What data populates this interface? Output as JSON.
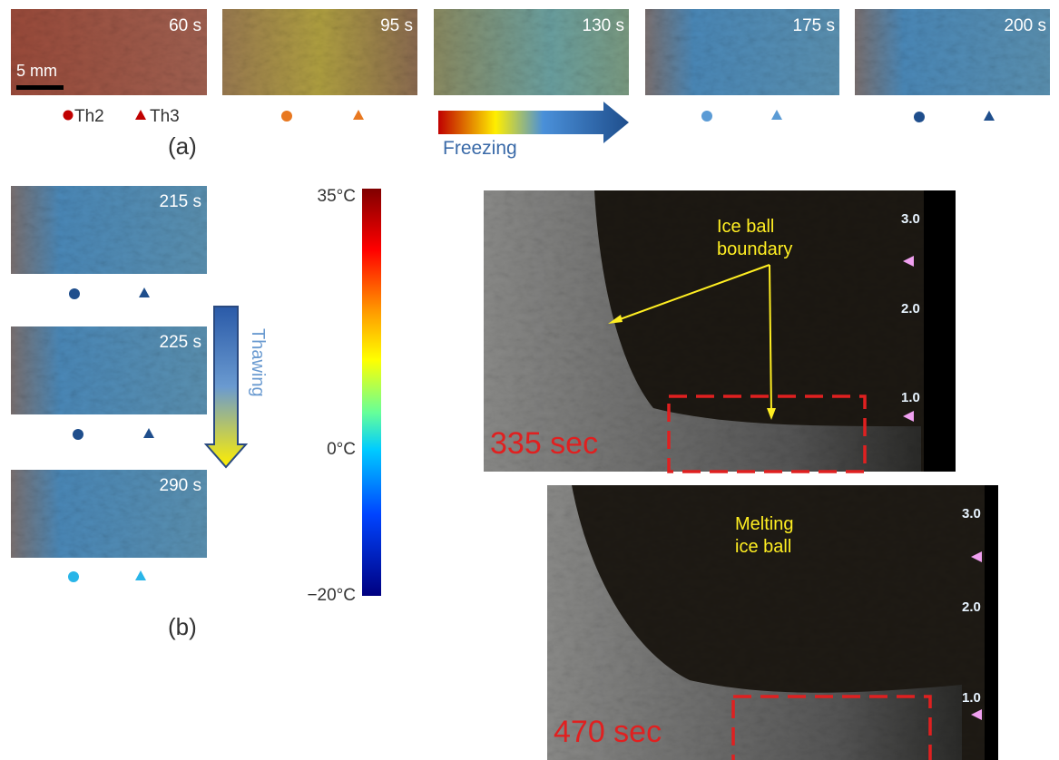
{
  "panel_a": {
    "label": "(a)",
    "frames": [
      "60 s",
      "95 s",
      "130 s",
      "175 s",
      "200 s"
    ],
    "scale_bar": "5 mm",
    "legend": [
      "Th2",
      "Th3"
    ],
    "arrow": "Freezing"
  },
  "panel_b": {
    "label": "(b)",
    "frames": [
      "215 s",
      "225 s",
      "290 s"
    ],
    "arrow": "Thawing"
  },
  "colorbar": {
    "labels": [
      "35°C",
      "0°C",
      "−20°C"
    ]
  },
  "ultrasound": [
    {
      "time": "335 sec",
      "annotation": [
        "Ice ball",
        "boundary"
      ],
      "depth_labels": [
        "3.0",
        "2.0",
        "1.0"
      ]
    },
    {
      "time": "470 sec",
      "annotation": [
        "Melting",
        "ice ball"
      ],
      "depth_labels": [
        "3.0",
        "2.0",
        "1.0"
      ]
    }
  ]
}
